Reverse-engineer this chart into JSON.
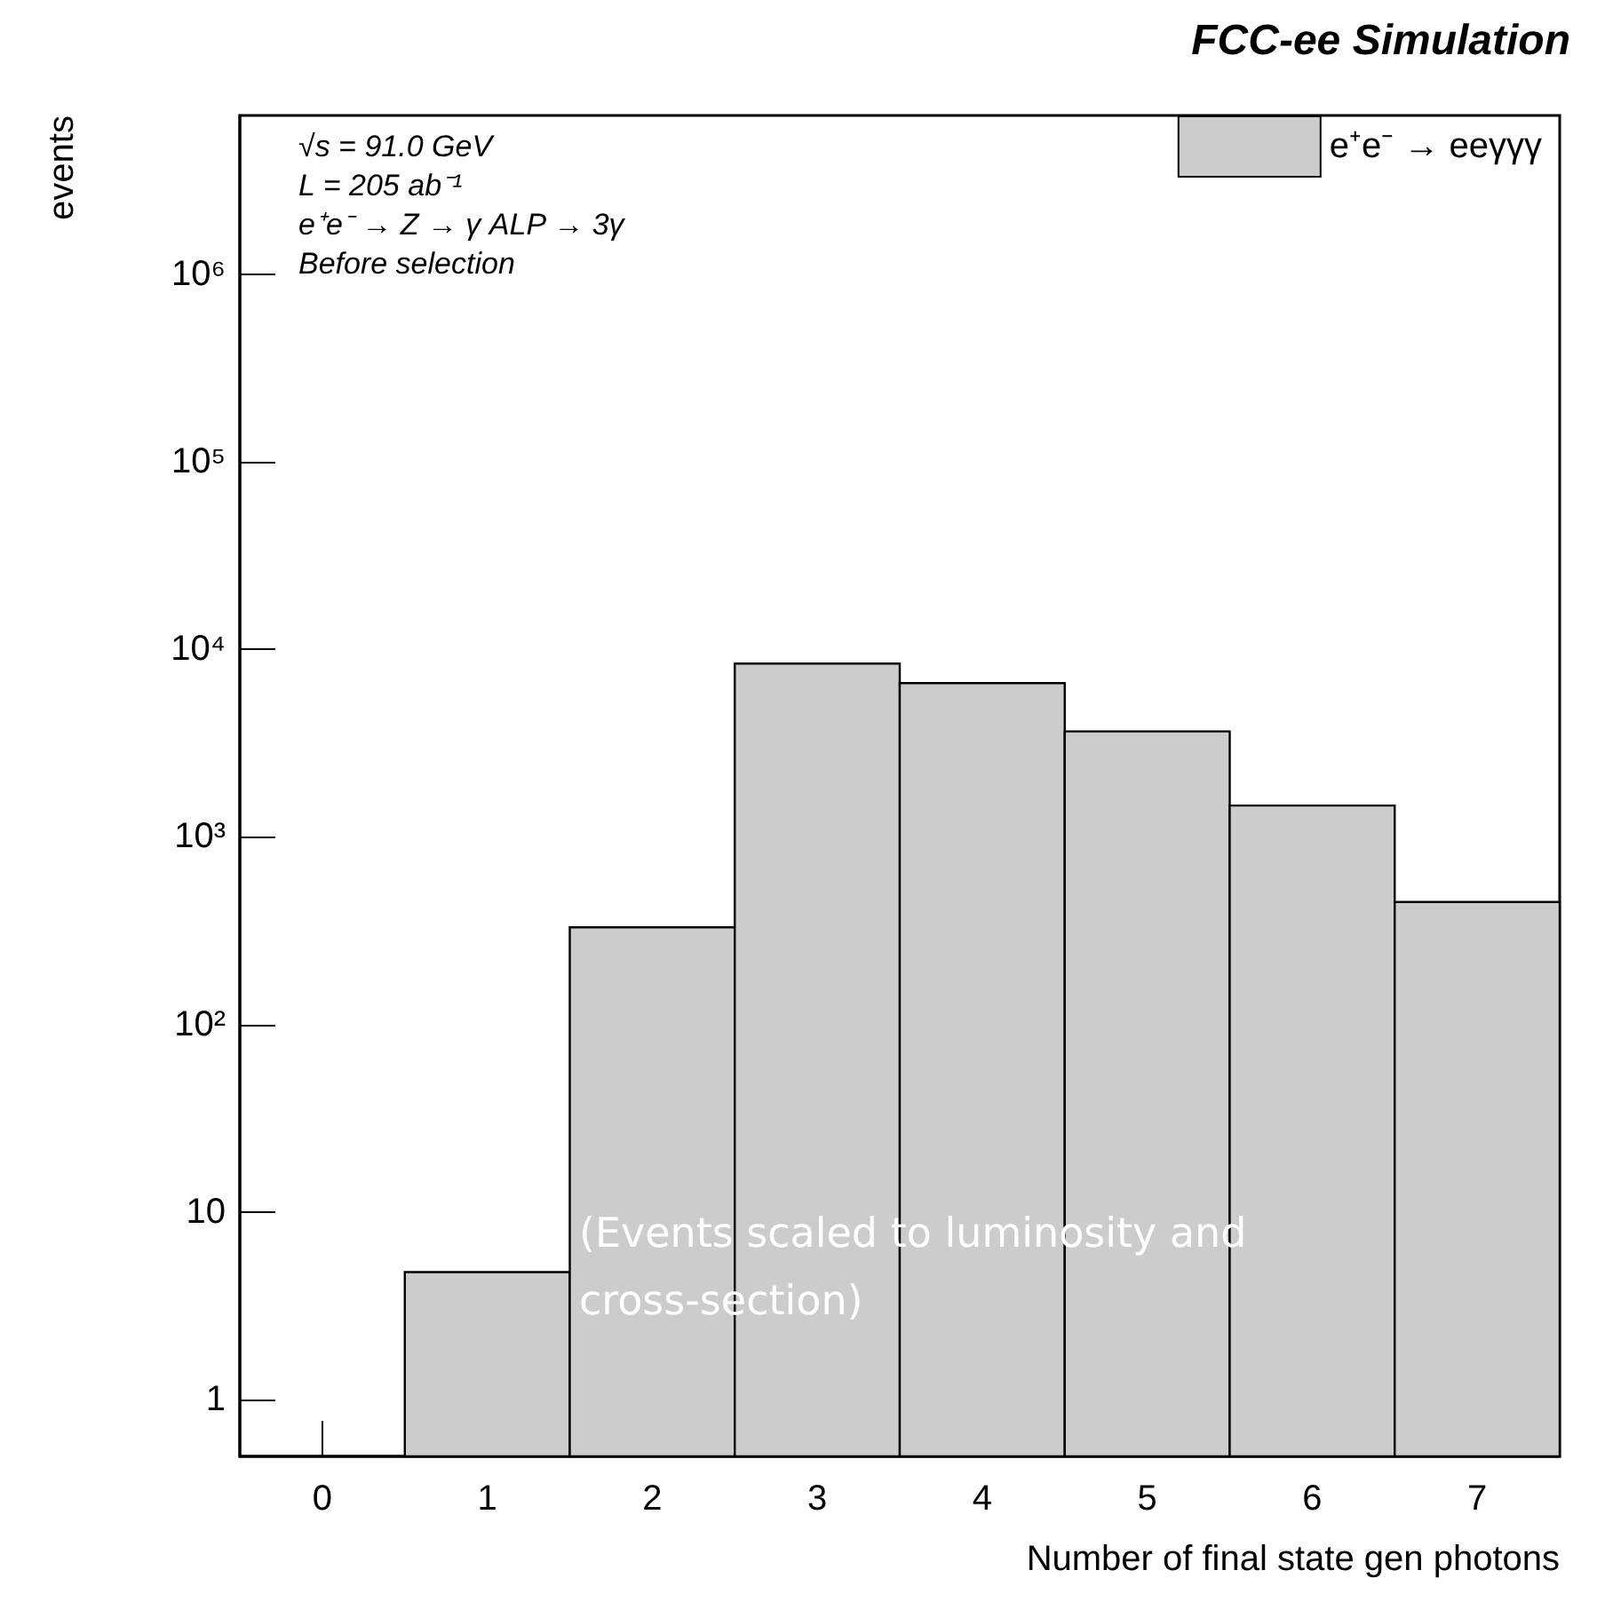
{
  "chart_data": {
    "type": "histogram",
    "title": "FCC-ee Simulation",
    "xlabel": "Number of final state gen photons",
    "ylabel": "events",
    "bins": [
      0.5,
      1.5,
      2.5,
      3.5,
      4.5,
      5.5,
      6.5,
      7.5
    ],
    "series": [
      {
        "name": "e⁺e⁻ → eeγγγ",
        "color": "#cccccc",
        "values": [
          4.8,
          330,
          8400,
          6600,
          3650,
          1470,
          450
        ]
      }
    ],
    "xlim": [
      -0.5,
      7.5
    ],
    "xticks": [
      0,
      1,
      2,
      3,
      4,
      5,
      6,
      7
    ],
    "ylim": [
      0.5,
      7000000
    ],
    "log": true,
    "yticks": [
      1,
      10,
      {
        "value": 100,
        "label": "10²"
      },
      {
        "value": 1000,
        "label": "10³"
      },
      {
        "value": 10000,
        "label": "10⁴"
      },
      {
        "value": 100000,
        "label": "10⁵"
      },
      {
        "value": 1000000,
        "label": "10⁶"
      }
    ],
    "legend": "top right",
    "grid": false,
    "annotations": [
      "√s = 91.0 GeV",
      "L = 205 ab⁻¹",
      "e⁺e⁻ → Z → γ ALP → 3γ",
      "Before selection",
      "(Events scaled to luminosity and cross-section)"
    ]
  }
}
